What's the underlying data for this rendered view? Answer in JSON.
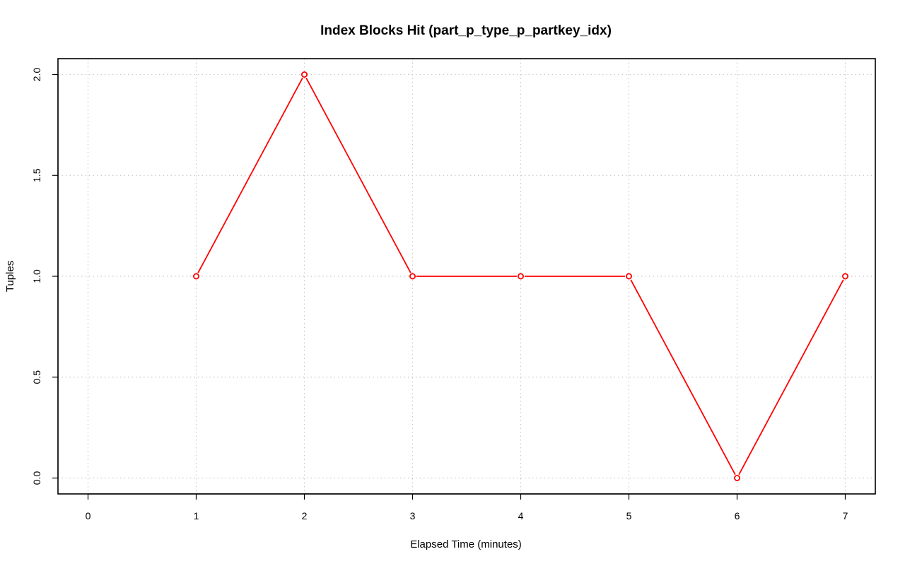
{
  "chart_data": {
    "type": "line",
    "title": "Index Blocks Hit (part_p_type_p_partkey_idx)",
    "xlabel": "Elapsed Time (minutes)",
    "ylabel": "Tuples",
    "xlim": [
      0,
      7
    ],
    "ylim": [
      0,
      2
    ],
    "x_ticks": [
      "0",
      "1",
      "2",
      "3",
      "4",
      "5",
      "6",
      "7"
    ],
    "y_ticks": [
      "0.0",
      "0.5",
      "1.0",
      "1.5",
      "2.0"
    ],
    "grid": true,
    "series": [
      {
        "x": [
          1,
          2,
          3,
          4,
          5,
          6,
          7
        ],
        "values": [
          1,
          2,
          1,
          1,
          1,
          0,
          1
        ],
        "color": "#ff0000",
        "marker": "open-circle"
      }
    ]
  }
}
